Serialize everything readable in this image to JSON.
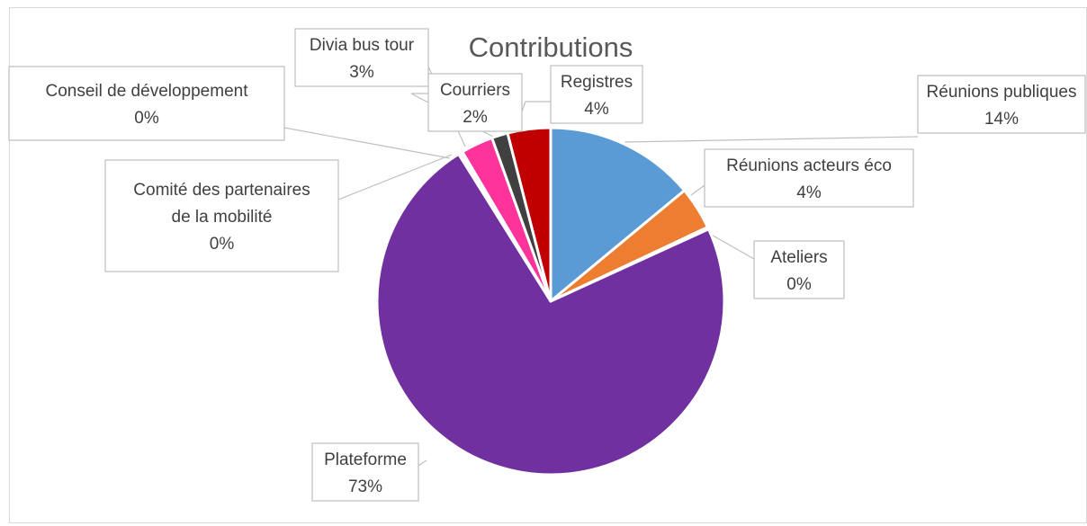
{
  "chart_data": {
    "type": "pie",
    "title": "Contributions",
    "slices": [
      {
        "label": "Réunions publiques",
        "value": 14,
        "pct_label": "14%",
        "color": "#5b9bd5"
      },
      {
        "label": "Réunions acteurs éco",
        "value": 4,
        "pct_label": "4%",
        "color": "#ed7d31"
      },
      {
        "label": "Ateliers",
        "value": 0.2,
        "pct_label": "0%",
        "color": "#a5a5a5"
      },
      {
        "label": "Plateforme",
        "value": 73,
        "pct_label": "73%",
        "color": "#7030a0"
      },
      {
        "label": "Comité des partenaires de la mobilité",
        "value": 0.2,
        "pct_label": "0%",
        "color": "#4472c4"
      },
      {
        "label": "Conseil de développement",
        "value": 0.2,
        "pct_label": "0%",
        "color": "#70ad47"
      },
      {
        "label": "Divia bus tour",
        "value": 3,
        "pct_label": "3%",
        "color": "#ff3399"
      },
      {
        "label": "Courriers",
        "value": 1.5,
        "pct_label": "2%",
        "color": "#404040"
      },
      {
        "label": "Registres",
        "value": 4,
        "pct_label": "4%",
        "color": "#c00000"
      }
    ],
    "data_labels": {
      "show_category": true,
      "show_percent": true,
      "callout_boxes": true
    },
    "legend": "none"
  }
}
